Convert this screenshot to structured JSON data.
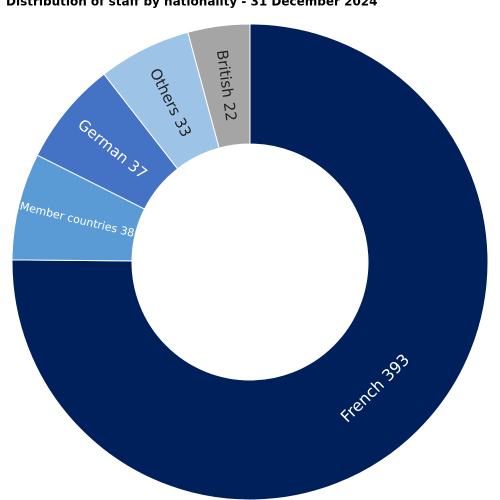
{
  "chart_data": {
    "type": "donut",
    "title": "Distribution of staff by nationality - 31 December 2024",
    "categories": [
      "French",
      "Member countries",
      "German",
      "Others",
      "British"
    ],
    "values": [
      393,
      38,
      37,
      33,
      22
    ],
    "colors": [
      "#00205b",
      "#5b9bd5",
      "#4472c4",
      "#9dc3e6",
      "#a5a5a5"
    ]
  }
}
